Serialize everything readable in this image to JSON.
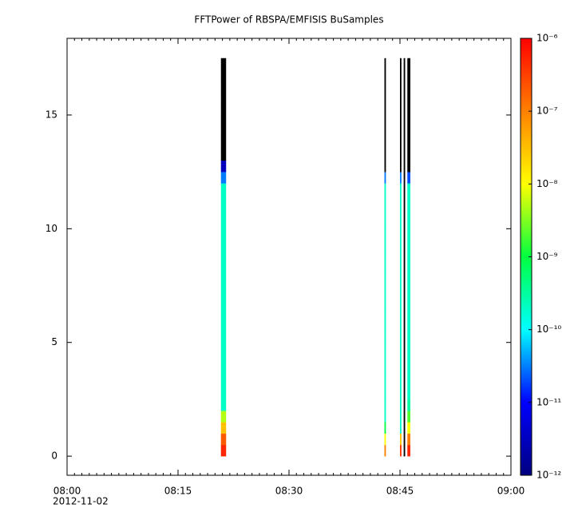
{
  "chart_data": {
    "type": "spectrogram",
    "title": "FFTPower of RBSPA/EMFISIS  BuSamples",
    "x_sublabel": "2012-11-02",
    "xlim": [
      0,
      60
    ],
    "xticks": [
      {
        "value": 0,
        "label": "08:00"
      },
      {
        "value": 15,
        "label": "08:15"
      },
      {
        "value": 30,
        "label": "08:30"
      },
      {
        "value": 45,
        "label": "08:45"
      },
      {
        "value": 60,
        "label": "09:00"
      }
    ],
    "xminorticks": [
      0,
      1,
      2,
      3,
      4,
      5,
      6,
      7,
      8,
      9,
      10,
      11,
      12,
      13,
      14,
      15,
      16,
      17,
      18,
      19,
      20,
      21,
      22,
      23,
      24,
      25,
      26,
      27,
      28,
      29,
      30,
      31,
      32,
      33,
      34,
      35,
      36,
      37,
      38,
      39,
      40,
      41,
      42,
      43,
      44,
      45,
      46,
      47,
      48,
      49,
      50,
      51,
      52,
      53,
      54,
      55,
      56,
      57,
      58,
      59,
      60
    ],
    "ylim": [
      -0.84,
      18.37
    ],
    "yticks": [
      0,
      5,
      10,
      15
    ],
    "y_bins": [
      0,
      0.5,
      1,
      1.5,
      2,
      2.5,
      3,
      3.5,
      4,
      4.5,
      5,
      5.5,
      6,
      6.5,
      7,
      7.5,
      8,
      8.5,
      9,
      9.5,
      10,
      10.5,
      11,
      11.5,
      12,
      12.5,
      13,
      13.5,
      14,
      14.5,
      15,
      15.5,
      16,
      16.5,
      17,
      17.5
    ],
    "zlim": [
      1e-12,
      1e-06
    ],
    "zlog": true,
    "zticks": [
      {
        "value": 1e-12,
        "label": "10⁻¹²"
      },
      {
        "value": 1e-11,
        "label": "10⁻¹¹"
      },
      {
        "value": 1e-10,
        "label": "10⁻¹⁰"
      },
      {
        "value": 1e-09,
        "label": "10⁻⁹"
      },
      {
        "value": 1e-08,
        "label": "10⁻⁸"
      },
      {
        "value": 1e-07,
        "label": "10⁻⁷"
      },
      {
        "value": 1e-06,
        "label": "10⁻⁶"
      }
    ],
    "colormap": [
      "#00007f",
      "#0000ff",
      "#00ffff",
      "#00ff40",
      "#ffff00",
      "#ff8000",
      "#ff0000"
    ],
    "below_color": "#000000",
    "columns": [
      {
        "xrange": [
          20.8,
          21.5
        ],
        "values": [
          5e-07,
          2e-07,
          3e-08,
          5e-09,
          2e-10,
          2e-10,
          2e-10,
          2e-10,
          2e-10,
          2e-10,
          2e-10,
          2e-10,
          2e-10,
          2e-10,
          2e-10,
          2e-10,
          2e-10,
          2e-10,
          2e-10,
          2e-10,
          2e-10,
          2e-10,
          2e-10,
          2e-10,
          3e-11,
          3e-12,
          1e-13,
          1e-13,
          1e-13,
          1e-13,
          1e-13,
          1e-13,
          1e-13,
          1e-13,
          1e-13
        ]
      },
      {
        "xrange": [
          42.9,
          43.1
        ],
        "values": [
          1e-07,
          1e-08,
          1e-09,
          2e-10,
          2e-10,
          2e-10,
          2e-10,
          2e-10,
          2e-10,
          2e-10,
          2e-10,
          2e-10,
          2e-10,
          2e-10,
          2e-10,
          2e-10,
          2e-10,
          2e-10,
          2e-10,
          2e-10,
          2e-10,
          2e-10,
          2e-10,
          2e-10,
          3e-11,
          1e-13,
          1e-13,
          1e-13,
          1e-13,
          1e-13,
          1e-13,
          1e-13,
          1e-13,
          1e-13,
          1e-13
        ]
      },
      {
        "xrange": [
          45.0,
          45.2
        ],
        "values": [
          4e-07,
          3e-08,
          2e-10,
          2e-10,
          2e-10,
          2e-10,
          2e-10,
          2e-10,
          2e-10,
          2e-10,
          2e-10,
          2e-10,
          2e-10,
          2e-10,
          2e-10,
          2e-10,
          2e-10,
          2e-10,
          2e-10,
          2e-10,
          2e-10,
          2e-10,
          2e-10,
          2e-10,
          3e-11,
          1e-13,
          1e-13,
          1e-13,
          1e-13,
          1e-13,
          1e-13,
          1e-13,
          1e-13,
          1e-13,
          1e-13
        ]
      },
      {
        "xrange": [
          45.5,
          45.7
        ],
        "values": [
          1e-13,
          1e-13,
          1e-13,
          1e-13,
          1e-13,
          1e-13,
          1e-13,
          1e-13,
          1e-13,
          1e-13,
          1e-13,
          1e-13,
          1e-13,
          1e-13,
          1e-13,
          1e-13,
          1e-13,
          1e-13,
          1e-13,
          1e-13,
          1e-13,
          1e-13,
          1e-13,
          1e-13,
          1e-13,
          1e-13,
          1e-13,
          1e-13,
          1e-13,
          1e-13,
          1e-13,
          1e-13,
          1e-13,
          1e-13,
          1e-13
        ]
      },
      {
        "xrange": [
          46.0,
          46.4
        ],
        "values": [
          5e-07,
          1e-07,
          1e-08,
          2e-09,
          3e-10,
          2e-10,
          2e-10,
          2e-10,
          2e-10,
          2e-10,
          2e-10,
          2e-10,
          2e-10,
          2e-10,
          2e-10,
          2e-10,
          2e-10,
          2e-10,
          2e-10,
          2e-10,
          2e-10,
          2e-10,
          2e-10,
          2e-10,
          2e-11,
          1e-13,
          1e-13,
          1e-13,
          1e-13,
          1e-13,
          1e-13,
          1e-13,
          1e-13,
          1e-13,
          1e-13
        ]
      }
    ]
  }
}
